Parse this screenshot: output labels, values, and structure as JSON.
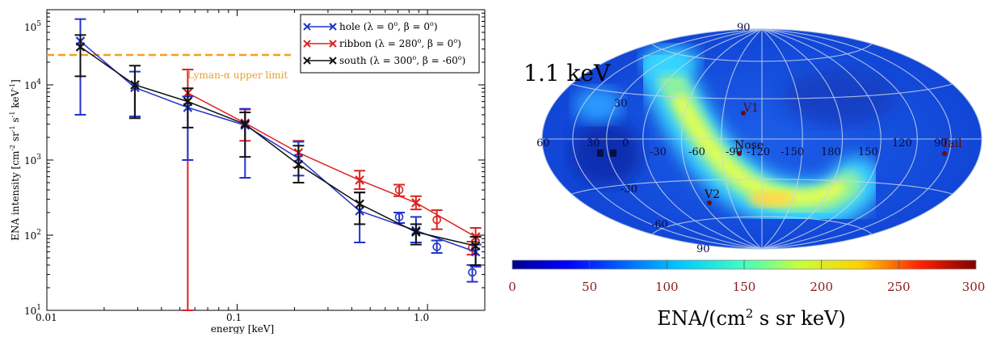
{
  "chart_data": [
    {
      "type": "line",
      "xscale": "log",
      "yscale": "log",
      "xlabel": "energy [keV]",
      "ylabel": "ENA intensity [cm^-2 sr^-1 s^-1 keV^-1]",
      "xlim": [
        0.01,
        2.0
      ],
      "ylim": [
        10,
        100000
      ],
      "x_ticks": [
        "0.01",
        "0.1",
        "1.0"
      ],
      "y_ticks": [
        "10",
        "10^2",
        "10^3",
        "10^4",
        "10^5"
      ],
      "grid": false,
      "legend_position": "top-right",
      "reference_line": {
        "label": "Lyman-α upper limit",
        "y": 25000,
        "color": "#f0a020"
      },
      "series": [
        {
          "name": "hole (λ = 0°, β = 0°)",
          "color": "#2233cc",
          "x": [
            0.015,
            0.029,
            0.055,
            0.11,
            0.21,
            0.44,
            0.87,
            1.79
          ],
          "y": [
            38000,
            9200,
            5000,
            2900,
            1050,
            210,
            115,
            60
          ],
          "yerr_low": [
            4000,
            3800,
            1000,
            580,
            620,
            80,
            80,
            38
          ],
          "yerr_high": [
            75000,
            15000,
            7000,
            4800,
            1750,
            370,
            175,
            75
          ],
          "extra_points": {
            "x": [
              0.71,
              1.12,
              1.72
            ],
            "y": [
              175,
              70,
              32
            ],
            "low": [
              145,
              58,
              24
            ],
            "high": [
              200,
              85,
              40
            ]
          }
        },
        {
          "name": "ribbon (λ = 280°, β = 0°)",
          "color": "#dd2222",
          "x": [
            0.055,
            0.11,
            0.21,
            0.44,
            0.87,
            1.79
          ],
          "y": [
            7800,
            3100,
            1250,
            540,
            270,
            95
          ],
          "yerr_low": [
            10,
            1800,
            800,
            410,
            220,
            75
          ],
          "yerr_high": [
            16000,
            4700,
            1800,
            720,
            330,
            125
          ],
          "extra_points": {
            "x": [
              0.71,
              1.12,
              1.72
            ],
            "y": [
              400,
              160,
              68
            ],
            "low": [
              330,
              120,
              55
            ],
            "high": [
              470,
              215,
              82
            ]
          }
        },
        {
          "name": "south (λ = 300°, β = -60°)",
          "color": "#111111",
          "x": [
            0.015,
            0.029,
            0.055,
            0.11,
            0.21,
            0.44,
            0.87,
            1.79
          ],
          "y": [
            32000,
            10000,
            6000,
            3000,
            870,
            260,
            110,
            72
          ],
          "yerr_low": [
            13000,
            3600,
            2700,
            1100,
            500,
            140,
            75,
            40
          ],
          "yerr_high": [
            46000,
            18000,
            9000,
            4300,
            1550,
            370,
            140,
            95
          ]
        }
      ]
    },
    {
      "type": "heatmap",
      "projection": "Aitoff-Hammer sky map",
      "title": "1.1 keV",
      "colorbar_label": "ENA/(cm^2 s sr keV)",
      "colorbar_range": [
        0,
        300
      ],
      "colorbar_ticks": [
        "0",
        "50",
        "100",
        "150",
        "200",
        "250",
        "300"
      ],
      "lon_labels": [
        "60",
        "30",
        "0",
        "-30",
        "-60",
        "-90",
        "-120",
        "-150",
        "180",
        "150",
        "120",
        "90"
      ],
      "lat_labels": [
        "90",
        "30",
        "-30",
        "-60",
        "-90"
      ],
      "markers": [
        "V1",
        "Nose",
        "V2",
        "Tail"
      ]
    }
  ],
  "text": {
    "left": {
      "xlabel": "energy [keV]",
      "ylabel_main": "ENA intensity [cm",
      "ylabel_s1": "sr",
      "ylabel_s2": "s",
      "ylabel_s3": "keV",
      "ylabel_close": "]",
      "ylabel_exp1": "-2",
      "ylabel_exp2": "-1",
      "ylabel_exp3": "-1",
      "ylabel_exp4": "-1",
      "lyman_label": "Lyman-α upper limit",
      "xt_001": "0.01",
      "xt_01": "0.1",
      "xt_1": "1.0",
      "yt_base": "10",
      "yt_e1": "1",
      "yt_e2": "2",
      "yt_e3": "3",
      "yt_e4": "4",
      "yt_e5": "5",
      "leg_hole_a": "hole (λ = 0",
      "leg_hole_b": ", β = 0",
      "leg_hole_c": ")",
      "leg_ribbon_a": "ribbon (λ = 280",
      "leg_ribbon_b": ", β = 0",
      "leg_ribbon_c": ")",
      "leg_south_a": "south (λ = 300",
      "leg_south_b": ", β = -60",
      "leg_south_c": ")",
      "deg": "o"
    },
    "right": {
      "title": "1.1 keV",
      "cb_label_a": "ENA/(cm",
      "cb_label_sup": "2",
      "cb_label_b": " s sr keV)",
      "cb_0": "0",
      "cb_50": "50",
      "cb_100": "100",
      "cb_150": "150",
      "cb_200": "200",
      "cb_250": "250",
      "cb_300": "300",
      "m_v1": "V1",
      "m_nose": "Nose",
      "m_v2": "V2",
      "m_tail": "Tail",
      "g_90t": "90",
      "g_30n": "30",
      "g_m30": "-30",
      "g_m60": "-60",
      "g_90b": "90",
      "l_60": "60",
      "l_30": "30",
      "l_0": "0",
      "l_m30": "-30",
      "l_m60": "-60",
      "l_m90": "-90",
      "l_m120": "-120",
      "l_m150": "-150",
      "l_180": "180",
      "l_150": "150",
      "l_120": "120",
      "l_90": "90"
    }
  }
}
